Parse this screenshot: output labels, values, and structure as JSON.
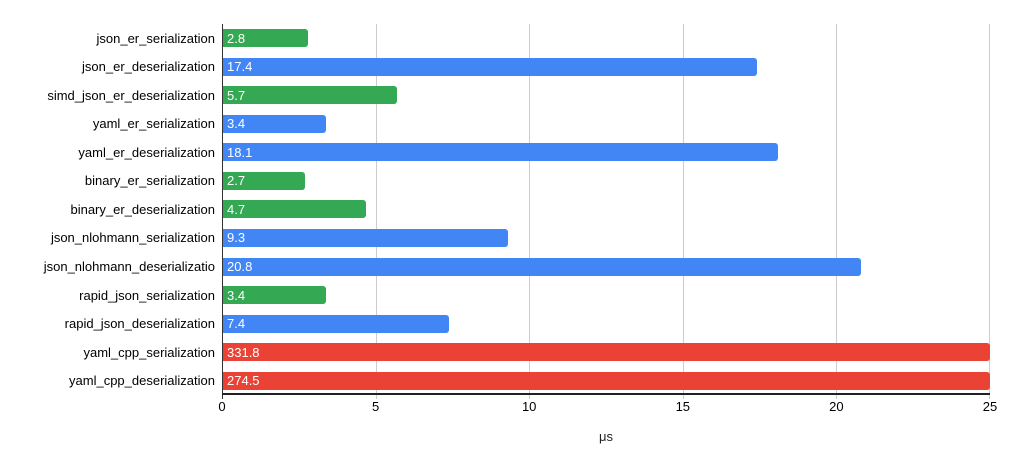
{
  "chart_data": {
    "type": "bar",
    "orientation": "horizontal",
    "title": "",
    "xlabel": "μs",
    "ylabel": "",
    "xlim": [
      0,
      25
    ],
    "xticks": [
      0,
      5,
      10,
      15,
      20,
      25
    ],
    "xtick_labels": [
      "0",
      "5",
      "10",
      "15",
      "20",
      "25"
    ],
    "grid": true,
    "legend_position": "none",
    "bars_clipped_at_xmax": true,
    "categories": [
      "json_er_serialization",
      "json_er_deserialization",
      "simd_json_er_deserialization",
      "yaml_er_serialization",
      "yaml_er_deserialization",
      "binary_er_serialization",
      "binary_er_deserialization",
      "json_nlohmann_serialization",
      "json_nlohmann_deserializatio",
      "rapid_json_serialization",
      "rapid_json_deserialization",
      "yaml_cpp_serialization",
      "yaml_cpp_deserialization"
    ],
    "values": [
      2.8,
      17.4,
      5.7,
      3.4,
      18.1,
      2.7,
      4.7,
      9.3,
      20.8,
      3.4,
      7.4,
      331.8,
      274.5
    ],
    "bar_labels": [
      "2.8",
      "17.4",
      "5.7",
      "3.4",
      "18.1",
      "2.7",
      "4.7",
      "9.3",
      "20.8",
      "3.4",
      "7.4",
      "331.8",
      "274.5"
    ],
    "bar_colors": [
      "green",
      "blue",
      "green",
      "blue",
      "blue",
      "green",
      "green",
      "blue",
      "blue",
      "green",
      "blue",
      "red",
      "red"
    ],
    "palette": {
      "blue": "#4285f4",
      "green": "#34a853",
      "red": "#ea4335"
    },
    "axis_color": "#333333",
    "baseline_color": "#212121",
    "gridline_color": "#cccccc"
  }
}
